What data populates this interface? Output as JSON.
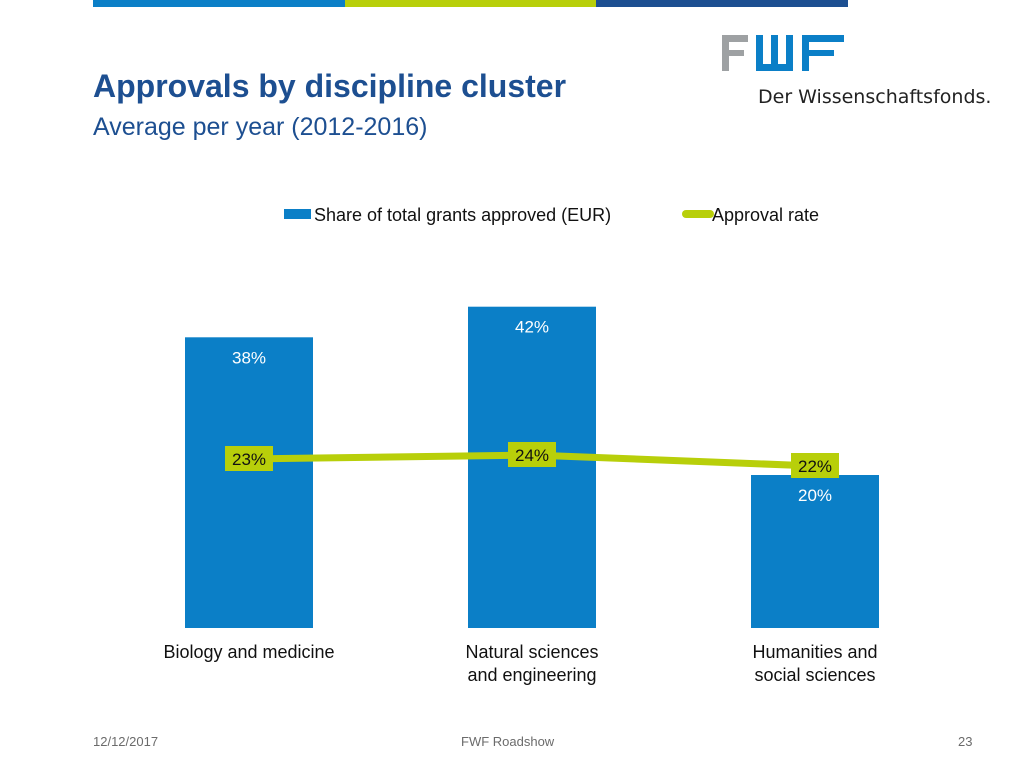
{
  "header": {
    "title": "Approvals by discipline cluster",
    "subtitle": "Average per year (2012-2016)",
    "top_bar_colors": [
      "#0b7fc7",
      "#b8cf0a",
      "#1d4f91"
    ]
  },
  "logo": {
    "text": "FWF",
    "tagline": "Der Wissenschaftsfonds.",
    "colors": [
      "#9ea1a3",
      "#0b7fc7"
    ]
  },
  "chart_data": {
    "type": "bar",
    "categories": [
      "Biology and medicine",
      "Natural sciences and engineering",
      "Humanities and social sciences"
    ],
    "category_lines": [
      [
        "Biology and medicine"
      ],
      [
        "Natural sciences",
        "and engineering"
      ],
      [
        "Humanities and",
        "social sciences"
      ]
    ],
    "series": [
      {
        "name": "Share of total grants approved (EUR)",
        "type": "bar",
        "values": [
          38,
          42,
          20
        ],
        "labels": [
          "38%",
          "42%",
          "20%"
        ],
        "color": "#0b7fc7"
      },
      {
        "name": "Approval rate",
        "type": "line",
        "values": [
          23,
          24,
          22
        ],
        "labels": [
          "23%",
          "24%",
          "22%"
        ],
        "color": "#b8cf0a"
      }
    ],
    "unit": "%",
    "legend_position": "top",
    "grid": false
  },
  "footer": {
    "date": "12/12/2017",
    "center": "FWF Roadshow",
    "page": "23"
  }
}
